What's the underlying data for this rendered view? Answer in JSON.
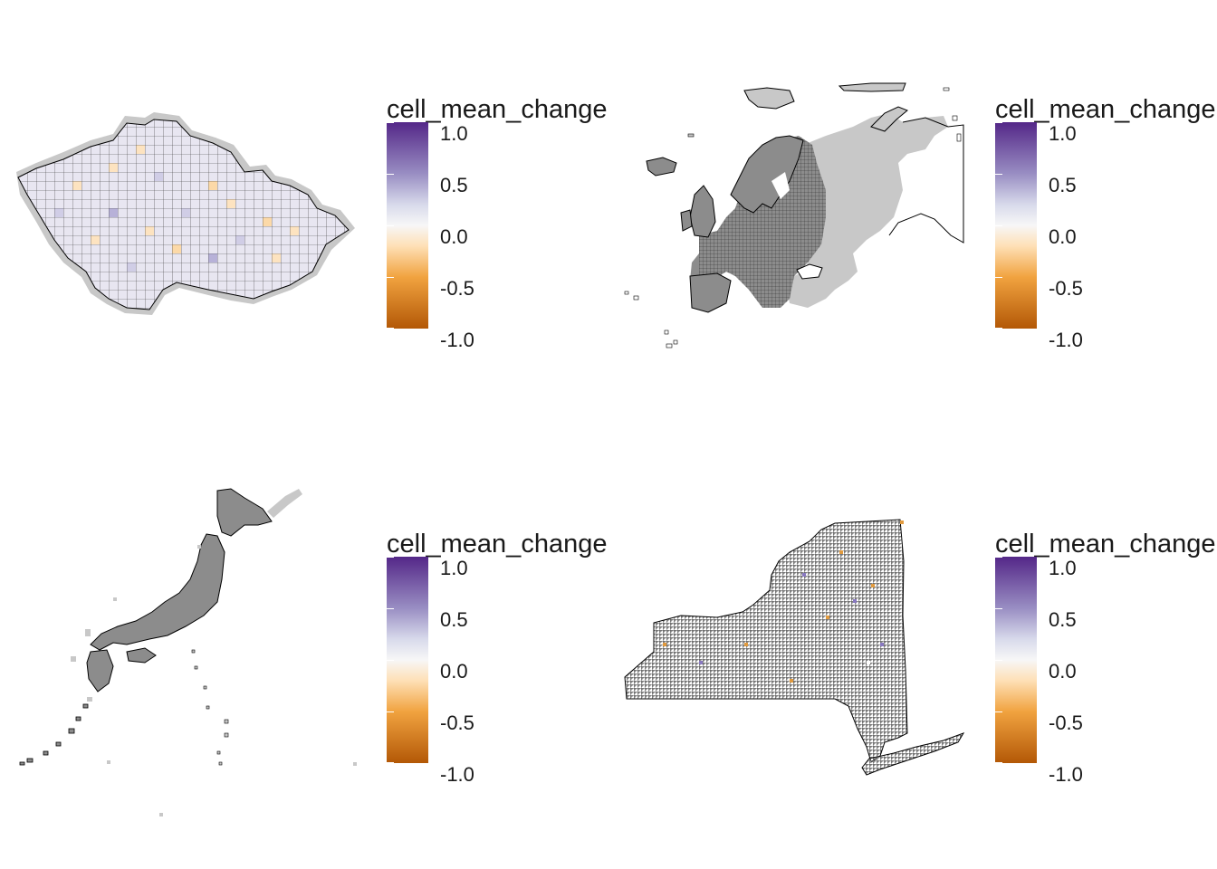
{
  "panels": [
    {
      "region": "Czech Republic",
      "legend": {
        "title": "cell_mean_change",
        "breaks": [
          "1.0",
          "0.5",
          "0.0",
          "-0.5",
          "-1.0"
        ]
      }
    },
    {
      "region": "Europe",
      "legend": {
        "title": "cell_mean_change",
        "breaks": [
          "1.0",
          "0.5",
          "0.0",
          "-0.5",
          "-1.0"
        ]
      }
    },
    {
      "region": "Japan",
      "legend": {
        "title": "cell_mean_change",
        "breaks": [
          "1.0",
          "0.5",
          "0.0",
          "-0.5",
          "-1.0"
        ]
      }
    },
    {
      "region": "New York",
      "legend": {
        "title": "cell_mean_change",
        "breaks": [
          "1.0",
          "0.5",
          "0.0",
          "-0.5",
          "-1.0"
        ]
      }
    }
  ],
  "scale": {
    "min": -1.0,
    "max": 1.0,
    "colors": {
      "low": "#b35806",
      "mid_low": "#f1a340",
      "light_low": "#fee0b6",
      "mid": "#f7f7f7",
      "light_high": "#d8daeb",
      "mid_high": "#998ec3",
      "high": "#542788"
    }
  },
  "colors": {
    "na_cell": "#c8c8c8",
    "outline": "#000000",
    "grid": "#333333"
  }
}
